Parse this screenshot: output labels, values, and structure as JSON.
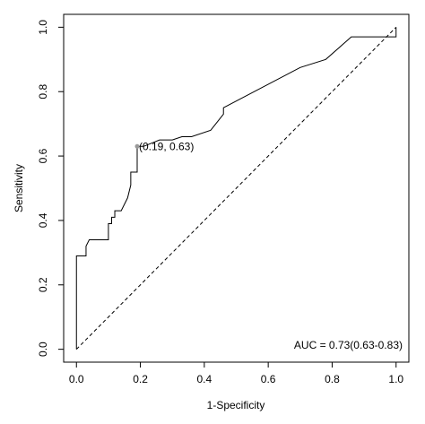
{
  "chart_data": {
    "type": "line",
    "xlabel": "1-Specificity",
    "ylabel": "Sensitivity",
    "xlim": [
      -0.04,
      1.04
    ],
    "ylim": [
      -0.04,
      1.04
    ],
    "xticks": [
      {
        "value": 0,
        "label": "0.0"
      },
      0.2,
      0.4,
      0.6,
      0.8,
      {
        "value": 1,
        "label": "1.0"
      }
    ],
    "yticks": [
      {
        "value": 0,
        "label": "0.0"
      },
      0.2,
      0.4,
      0.6,
      0.8,
      {
        "value": 1,
        "label": "1.0"
      }
    ],
    "series": [
      {
        "color": "#000000",
        "x": [
          0,
          0,
          0.03,
          0.03,
          0.04,
          0.1,
          0.1,
          0.11,
          0.11,
          0.12,
          0.12,
          0.14,
          0.16,
          0.17,
          0.17,
          0.19,
          0.19,
          0.21,
          0.26,
          0.3,
          0.33,
          0.36,
          0.42,
          0.46,
          0.46,
          0.7,
          0.78,
          0.86,
          1,
          1
        ],
        "values": [
          0,
          0.29,
          0.29,
          0.32,
          0.34,
          0.34,
          0.39,
          0.39,
          0.41,
          0.41,
          0.43,
          0.43,
          0.47,
          0.51,
          0.55,
          0.55,
          0.63,
          0.63,
          0.65,
          0.65,
          0.66,
          0.66,
          0.68,
          0.73,
          0.75,
          0.875,
          0.9,
          0.97,
          0.97,
          1
        ]
      },
      {
        "color": "#000000",
        "dash": true,
        "x": [
          0,
          1
        ],
        "values": [
          0,
          1
        ]
      }
    ],
    "annotations": [
      {
        "x": 0.19,
        "y": 0.63,
        "label": "(0.19, 0.63)",
        "color": "#999999"
      }
    ],
    "auc_text": "AUC = 0.73(0.63-0.83)"
  }
}
